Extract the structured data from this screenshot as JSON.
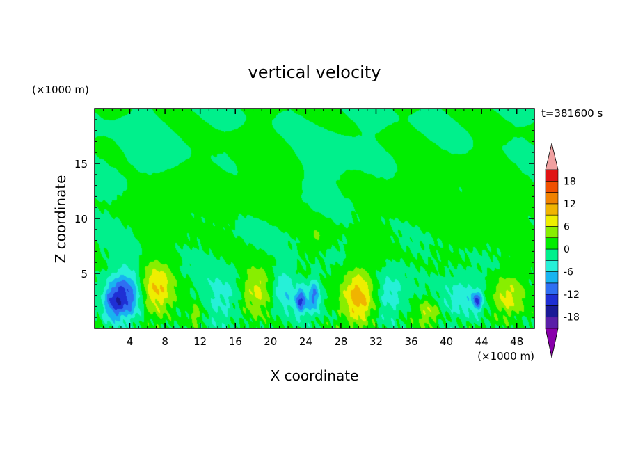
{
  "chart_data": {
    "type": "heatmap",
    "title": "vertical velocity",
    "xlabel": "X coordinate",
    "ylabel": "Z coordinate",
    "x_unit": "(×1000 m)",
    "y_unit": "(×1000 m)",
    "time_label": "t=381600 s",
    "xlim": [
      0,
      50
    ],
    "ylim": [
      0,
      20
    ],
    "x_ticks": [
      4,
      8,
      12,
      16,
      20,
      24,
      28,
      32,
      36,
      40,
      44,
      48
    ],
    "y_ticks": [
      5,
      10,
      15
    ],
    "colorbar": {
      "levels": [
        -21,
        -18,
        -15,
        -12,
        -9,
        -6,
        -3,
        0,
        3,
        6,
        9,
        12,
        15,
        18,
        21
      ],
      "tick_labels": [
        18,
        12,
        6,
        0,
        -6,
        -12,
        -18
      ],
      "colors": [
        "#5a1fa8",
        "#1a1a96",
        "#1f2fd4",
        "#2f6ff2",
        "#18b4f0",
        "#26f0d8",
        "#00f08c",
        "#00ee00",
        "#88ee00",
        "#eeee00",
        "#f0b400",
        "#f08200",
        "#f05000",
        "#e01414"
      ],
      "under_color": "#8800aa",
      "over_color": "#f0a0a0"
    },
    "features": [
      {
        "x": 3.5,
        "z": 3.0,
        "w": -12,
        "sx": 1.2,
        "sz": 1.6
      },
      {
        "x": 2.0,
        "z": 2.2,
        "w": -8,
        "sx": 0.8,
        "sz": 1.2
      },
      {
        "x": 7.0,
        "z": 3.5,
        "w": 9,
        "sx": 1.3,
        "sz": 1.8
      },
      {
        "x": 11.5,
        "z": 1.2,
        "w": 5,
        "sx": 0.6,
        "sz": 0.8
      },
      {
        "x": 14.5,
        "z": 3.0,
        "w": -4,
        "sx": 1.6,
        "sz": 1.6
      },
      {
        "x": 18.5,
        "z": 3.5,
        "w": 7,
        "sx": 1.3,
        "sz": 1.5
      },
      {
        "x": 21.5,
        "z": 3.5,
        "w": -5,
        "sx": 1.0,
        "sz": 1.5
      },
      {
        "x": 23.5,
        "z": 2.5,
        "w": -11,
        "sx": 0.5,
        "sz": 0.9
      },
      {
        "x": 25.0,
        "z": 3.0,
        "w": -10,
        "sx": 0.5,
        "sz": 1.1
      },
      {
        "x": 25.5,
        "z": 8.5,
        "w": 3,
        "sx": 0.9,
        "sz": 0.9
      },
      {
        "x": 30.0,
        "z": 2.8,
        "w": 11,
        "sx": 1.3,
        "sz": 1.9
      },
      {
        "x": 33.5,
        "z": 3.0,
        "w": -5,
        "sx": 1.2,
        "sz": 1.5
      },
      {
        "x": 38.0,
        "z": 1.5,
        "w": 6,
        "sx": 0.9,
        "sz": 0.9
      },
      {
        "x": 42.0,
        "z": 3.0,
        "w": -5,
        "sx": 1.6,
        "sz": 1.4
      },
      {
        "x": 43.5,
        "z": 2.5,
        "w": -10,
        "sx": 0.4,
        "sz": 0.6
      },
      {
        "x": 47.0,
        "z": 2.8,
        "w": 7,
        "sx": 1.3,
        "sz": 1.5
      },
      {
        "x": 6.0,
        "z": 16.0,
        "w": -1.5,
        "sx": 2.5,
        "sz": 1.8
      },
      {
        "x": 9.0,
        "z": 12.0,
        "w": 1.5,
        "sx": 3.0,
        "sz": 2.0
      },
      {
        "x": 20.0,
        "z": 14.0,
        "w": 1.5,
        "sx": 3.5,
        "sz": 2.5
      },
      {
        "x": 26.0,
        "z": 15.5,
        "w": -1.5,
        "sx": 2.5,
        "sz": 2.0
      },
      {
        "x": 36.0,
        "z": 12.0,
        "w": 1.2,
        "sx": 3.0,
        "sz": 2.5
      },
      {
        "x": 45.0,
        "z": 11.0,
        "w": 1.5,
        "sx": 3.0,
        "sz": 3.0
      }
    ]
  }
}
